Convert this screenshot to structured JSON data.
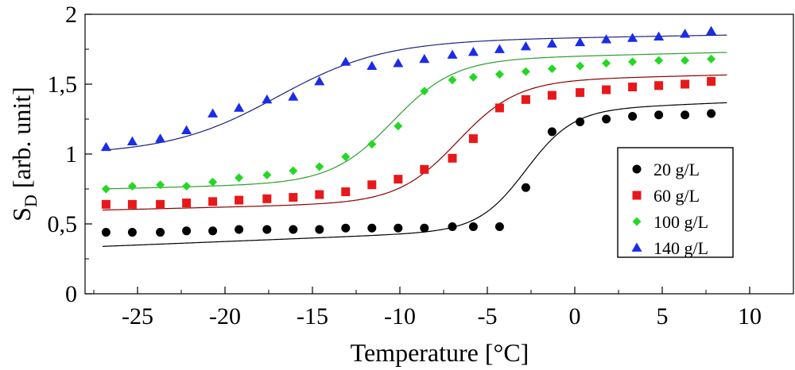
{
  "chart_data": {
    "type": "scatter",
    "xlabel": "Temperature [°C]",
    "ylabel": {
      "main": "S",
      "sub": "D",
      "unit": " [arb. unit]"
    },
    "xlim": [
      -28,
      12.5
    ],
    "ylim": [
      0,
      2
    ],
    "xticks": [
      -25,
      -20,
      -15,
      -10,
      -5,
      0,
      5,
      10
    ],
    "xtick_labels": [
      "-25",
      "-20",
      "-15",
      "-10",
      "-5",
      "0",
      "5",
      "10"
    ],
    "yticks": [
      0,
      0.5,
      1,
      1.5,
      2
    ],
    "ytick_labels": [
      "0",
      "0,5",
      "1",
      "1,5",
      "2"
    ],
    "legend_position": "right",
    "series": [
      {
        "name": "20 g/L",
        "color": "#000000",
        "marker": "circle",
        "x": [
          -26.8,
          -25.3,
          -23.7,
          -22.2,
          -20.7,
          -19.2,
          -17.6,
          -16.1,
          -14.6,
          -13.1,
          -11.6,
          -10.1,
          -8.6,
          -7.0,
          -5.8,
          -4.3,
          -2.8,
          -1.3,
          0.3,
          1.8,
          3.3,
          4.8,
          6.3,
          7.8
        ],
        "y": [
          0.44,
          0.44,
          0.44,
          0.45,
          0.45,
          0.46,
          0.46,
          0.46,
          0.46,
          0.47,
          0.47,
          0.47,
          0.47,
          0.48,
          0.48,
          0.48,
          0.76,
          1.16,
          1.23,
          1.25,
          1.27,
          1.28,
          1.28,
          1.29
        ],
        "fit": {
          "base": 0.46,
          "top": 1.31,
          "x0": -2.8,
          "k": 1.35,
          "slope": 0.005
        }
      },
      {
        "name": "60 g/L",
        "color": "#e8181a",
        "marker": "square",
        "x": [
          -26.8,
          -25.3,
          -23.7,
          -22.2,
          -20.7,
          -19.2,
          -17.6,
          -16.1,
          -14.6,
          -13.1,
          -11.6,
          -10.1,
          -8.6,
          -7.0,
          -5.8,
          -4.3,
          -2.8,
          -1.3,
          0.3,
          1.8,
          3.3,
          4.8,
          6.3,
          7.8
        ],
        "y": [
          0.64,
          0.64,
          0.64,
          0.65,
          0.66,
          0.67,
          0.68,
          0.69,
          0.71,
          0.73,
          0.78,
          0.82,
          0.89,
          0.97,
          1.11,
          1.33,
          1.39,
          1.42,
          1.44,
          1.46,
          1.48,
          1.49,
          1.5,
          1.52
        ],
        "fit": {
          "base": 0.66,
          "top": 1.52,
          "x0": -6.7,
          "k": 1.7,
          "slope": 0.003
        }
      },
      {
        "name": "100 g/L",
        "color": "#22d822",
        "marker": "diamond",
        "x": [
          -26.8,
          -25.3,
          -23.7,
          -22.2,
          -20.7,
          -19.2,
          -17.6,
          -16.1,
          -14.6,
          -13.1,
          -11.6,
          -10.1,
          -8.6,
          -7.0,
          -5.8,
          -4.3,
          -2.8,
          -1.3,
          0.3,
          1.8,
          3.3,
          4.8,
          6.3,
          7.8
        ],
        "y": [
          0.75,
          0.77,
          0.78,
          0.77,
          0.8,
          0.83,
          0.85,
          0.88,
          0.91,
          0.98,
          1.07,
          1.2,
          1.45,
          1.53,
          1.55,
          1.57,
          1.59,
          1.61,
          1.63,
          1.65,
          1.66,
          1.67,
          1.67,
          1.68
        ],
        "fit": {
          "base": 0.8,
          "top": 1.67,
          "x0": -10.4,
          "k": 1.75,
          "slope": 0.003
        }
      },
      {
        "name": "140 g/L",
        "color": "#1a2ce8",
        "marker": "triangle",
        "x": [
          -26.8,
          -25.3,
          -23.7,
          -22.2,
          -20.7,
          -19.2,
          -17.6,
          -16.1,
          -14.6,
          -13.1,
          -11.6,
          -10.1,
          -8.6,
          -7.0,
          -5.8,
          -4.3,
          -2.8,
          -1.3,
          0.3,
          1.8,
          3.3,
          4.8,
          6.3,
          7.8
        ],
        "y": [
          1.05,
          1.09,
          1.11,
          1.17,
          1.29,
          1.33,
          1.39,
          1.41,
          1.52,
          1.66,
          1.63,
          1.65,
          1.68,
          1.71,
          1.73,
          1.75,
          1.77,
          1.79,
          1.8,
          1.82,
          1.83,
          1.84,
          1.86,
          1.88
        ],
        "fit": {
          "base": 1.02,
          "top": 1.8,
          "x0": -17.0,
          "k": 3.0,
          "slope": 0.002
        }
      }
    ]
  }
}
